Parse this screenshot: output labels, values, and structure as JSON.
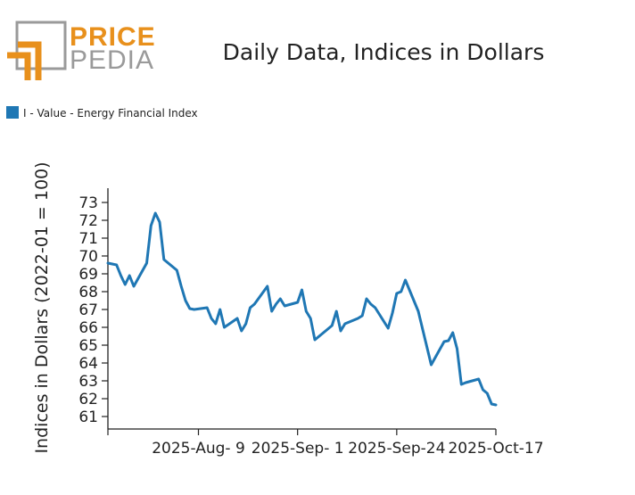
{
  "logo": {
    "word_top": "PRICE",
    "word_bottom": "PEDIA",
    "color_orange": "#e8901c",
    "color_gray": "#9a9a9a"
  },
  "chart_data": {
    "type": "line",
    "title": "Daily Data, Indices in Dollars",
    "ylabel": "Indices in Dollars (2022-01 = 100)",
    "xlabel": "",
    "ylim": [
      60.3,
      73.8
    ],
    "yticks": [
      61,
      62,
      63,
      64,
      65,
      66,
      67,
      68,
      69,
      70,
      71,
      72,
      73
    ],
    "xlim": [
      "2025-07-19",
      "2025-10-17"
    ],
    "xticks": [
      {
        "date": "2025-07-19",
        "label": ""
      },
      {
        "date": "2025-08-09",
        "label": "2025-Aug- 9"
      },
      {
        "date": "2025-09-01",
        "label": "2025-Sep- 1"
      },
      {
        "date": "2025-09-24",
        "label": "2025-Sep-24"
      },
      {
        "date": "2025-10-17",
        "label": "2025-Oct-17"
      }
    ],
    "grid": false,
    "legend_position": "top-left",
    "series": [
      {
        "name": "I - Value - Energy Financial Index",
        "color": "#1f77b4",
        "x": [
          "2025-07-19",
          "2025-07-21",
          "2025-07-22",
          "2025-07-23",
          "2025-07-24",
          "2025-07-25",
          "2025-07-28",
          "2025-07-29",
          "2025-07-30",
          "2025-07-31",
          "2025-08-01",
          "2025-08-04",
          "2025-08-05",
          "2025-08-06",
          "2025-08-07",
          "2025-08-08",
          "2025-08-11",
          "2025-08-12",
          "2025-08-13",
          "2025-08-14",
          "2025-08-15",
          "2025-08-18",
          "2025-08-19",
          "2025-08-20",
          "2025-08-21",
          "2025-08-22",
          "2025-08-25",
          "2025-08-26",
          "2025-08-27",
          "2025-08-28",
          "2025-08-29",
          "2025-09-01",
          "2025-09-02",
          "2025-09-03",
          "2025-09-04",
          "2025-09-05",
          "2025-09-08",
          "2025-09-09",
          "2025-09-10",
          "2025-09-11",
          "2025-09-12",
          "2025-09-15",
          "2025-09-16",
          "2025-09-17",
          "2025-09-18",
          "2025-09-19",
          "2025-09-22",
          "2025-09-23",
          "2025-09-24",
          "2025-09-25",
          "2025-09-26",
          "2025-09-29",
          "2025-10-02",
          "2025-10-05",
          "2025-10-06",
          "2025-10-07",
          "2025-10-08",
          "2025-10-09",
          "2025-10-10",
          "2025-10-13",
          "2025-10-14",
          "2025-10-15",
          "2025-10-16",
          "2025-10-17"
        ],
        "values": [
          69.6,
          69.5,
          68.9,
          68.4,
          68.9,
          68.3,
          69.6,
          71.7,
          72.4,
          71.9,
          69.8,
          69.2,
          68.3,
          67.5,
          67.05,
          67.0,
          67.1,
          66.5,
          66.2,
          67.0,
          66.0,
          66.5,
          65.8,
          66.2,
          67.1,
          67.3,
          68.3,
          66.9,
          67.3,
          67.6,
          67.2,
          67.4,
          68.1,
          66.9,
          66.5,
          65.3,
          65.9,
          66.1,
          66.9,
          65.8,
          66.2,
          66.5,
          66.65,
          67.6,
          67.3,
          67.1,
          65.95,
          66.8,
          67.9,
          68.0,
          68.65,
          66.9,
          63.9,
          65.2,
          65.25,
          65.7,
          64.8,
          62.8,
          62.9,
          63.1,
          62.5,
          62.3,
          61.7,
          61.65
        ]
      }
    ]
  }
}
